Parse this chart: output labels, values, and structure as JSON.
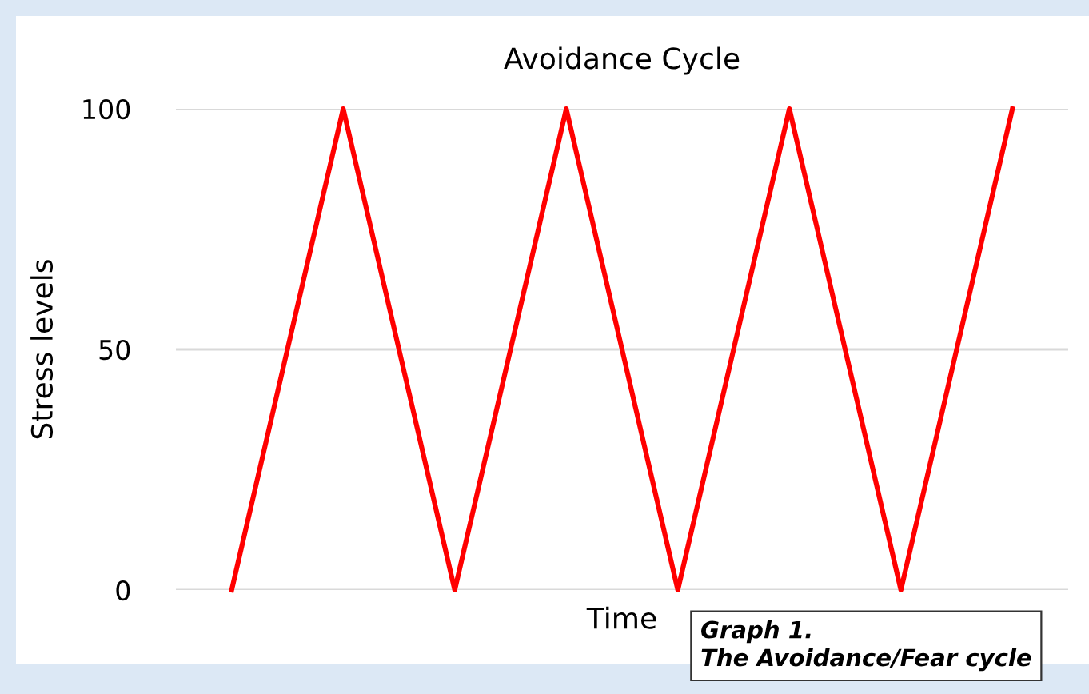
{
  "chart_data": {
    "type": "line",
    "title": "Avoidance Cycle",
    "xlabel": "Time",
    "ylabel": "Stress levels",
    "categories": [
      null,
      null,
      null,
      null,
      null,
      null,
      null,
      null
    ],
    "series": [
      {
        "color": "#ff0000",
        "values": [
          0,
          100,
          0,
          100,
          0,
          100,
          0,
          100
        ]
      }
    ],
    "ylim": [
      0,
      100
    ],
    "yticks": [
      0,
      50,
      100
    ],
    "grid": "y",
    "marker": "none",
    "line_style": "solid",
    "annotations": [
      "Graph 1.\nThe Avoidance/Fear cycle"
    ]
  }
}
